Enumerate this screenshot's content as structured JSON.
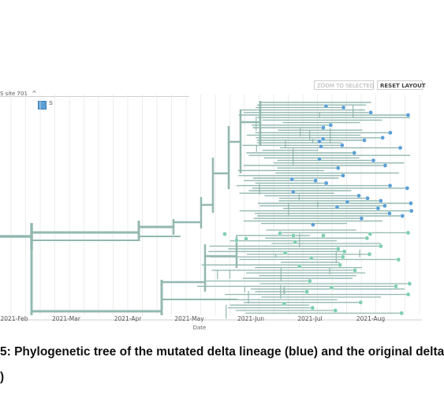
{
  "legend": {
    "title": "S site 701",
    "chevron": "^",
    "item_label": "S",
    "item_color": "#5b9fd6"
  },
  "toolbar": {
    "zoom_to_selected": "ZOOM TO SELECTED",
    "reset_layout": "RESET LAYOUT"
  },
  "chart_data": {
    "type": "tree",
    "x_axis": {
      "label": "Date",
      "ticks": [
        "2021-Feb",
        "2021-Mar",
        "2021-Apr",
        "2021-May",
        "2021-Jun",
        "2021-Jul",
        "2021-Aug"
      ]
    },
    "colors": {
      "branch": "#93b8b0",
      "mutated_tip": "#5b9fd6",
      "original_tip": "#7fcfb0"
    }
  },
  "caption": {
    "line1": "5: Phylogenetic tree of the mutated delta lineage (blue) and the original delta",
    "line2": ")"
  }
}
